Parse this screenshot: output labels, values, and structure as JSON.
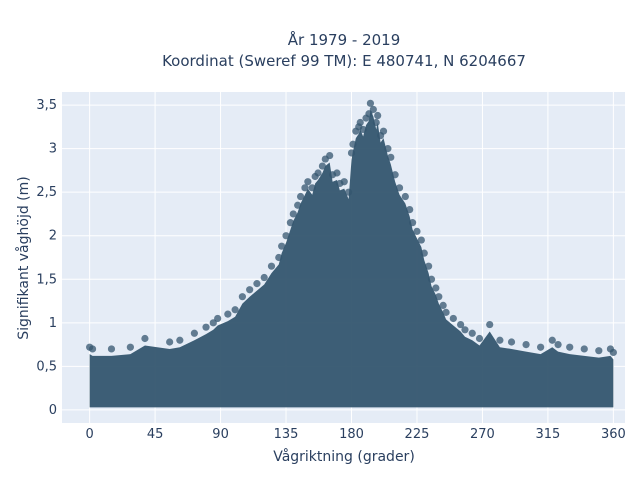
{
  "chart_data": {
    "type": "scatter",
    "title": "År 1979 - 2019",
    "subtitle": "Koordinat (Sweref 99 TM): E 480741, N 6204667",
    "xlabel": "Vågriktning (grader)",
    "ylabel": "Signifikant våghöjd (m)",
    "xlim": [
      -19,
      368
    ],
    "ylim": [
      -0.15,
      3.65
    ],
    "x_ticks": [
      0,
      45,
      90,
      135,
      180,
      225,
      270,
      315,
      360
    ],
    "x_tick_labels": [
      "0",
      "45",
      "90",
      "135",
      "180",
      "225",
      "270",
      "315",
      "360"
    ],
    "y_ticks": [
      0,
      0.5,
      1,
      1.5,
      2,
      2.5,
      3,
      3.5
    ],
    "y_tick_labels": [
      "0",
      "0,5",
      "1",
      "1,5",
      "2",
      "2,5",
      "3",
      "3,5"
    ],
    "grid": true,
    "legend": "none",
    "marker_color": "#34566f",
    "marker_opacity": 0.75,
    "series": [
      {
        "name": "",
        "points": [
          [
            0,
            0.72
          ],
          [
            2,
            0.7
          ],
          [
            15,
            0.7
          ],
          [
            28,
            0.72
          ],
          [
            38,
            0.82
          ],
          [
            55,
            0.78
          ],
          [
            62,
            0.8
          ],
          [
            72,
            0.88
          ],
          [
            80,
            0.95
          ],
          [
            85,
            1.0
          ],
          [
            88,
            1.05
          ],
          [
            95,
            1.1
          ],
          [
            100,
            1.15
          ],
          [
            105,
            1.3
          ],
          [
            110,
            1.38
          ],
          [
            115,
            1.45
          ],
          [
            120,
            1.52
          ],
          [
            125,
            1.65
          ],
          [
            130,
            1.75
          ],
          [
            132,
            1.88
          ],
          [
            135,
            2.0
          ],
          [
            138,
            2.15
          ],
          [
            140,
            2.25
          ],
          [
            143,
            2.35
          ],
          [
            145,
            2.45
          ],
          [
            148,
            2.55
          ],
          [
            150,
            2.62
          ],
          [
            153,
            2.55
          ],
          [
            155,
            2.68
          ],
          [
            157,
            2.72
          ],
          [
            160,
            2.8
          ],
          [
            162,
            2.88
          ],
          [
            165,
            2.92
          ],
          [
            167,
            2.7
          ],
          [
            170,
            2.72
          ],
          [
            172,
            2.6
          ],
          [
            175,
            2.62
          ],
          [
            178,
            2.5
          ],
          [
            180,
            2.95
          ],
          [
            181,
            3.05
          ],
          [
            183,
            3.2
          ],
          [
            185,
            3.25
          ],
          [
            186,
            3.3
          ],
          [
            188,
            3.22
          ],
          [
            190,
            3.35
          ],
          [
            192,
            3.4
          ],
          [
            193,
            3.52
          ],
          [
            195,
            3.45
          ],
          [
            197,
            3.3
          ],
          [
            198,
            3.38
          ],
          [
            200,
            3.15
          ],
          [
            202,
            3.2
          ],
          [
            205,
            3.0
          ],
          [
            207,
            2.9
          ],
          [
            210,
            2.7
          ],
          [
            213,
            2.55
          ],
          [
            217,
            2.45
          ],
          [
            220,
            2.3
          ],
          [
            222,
            2.15
          ],
          [
            225,
            2.05
          ],
          [
            228,
            1.95
          ],
          [
            230,
            1.8
          ],
          [
            233,
            1.65
          ],
          [
            235,
            1.5
          ],
          [
            238,
            1.4
          ],
          [
            240,
            1.3
          ],
          [
            243,
            1.2
          ],
          [
            245,
            1.12
          ],
          [
            250,
            1.05
          ],
          [
            255,
            0.98
          ],
          [
            258,
            0.92
          ],
          [
            263,
            0.88
          ],
          [
            268,
            0.82
          ],
          [
            275,
            0.98
          ],
          [
            282,
            0.8
          ],
          [
            290,
            0.78
          ],
          [
            300,
            0.75
          ],
          [
            310,
            0.72
          ],
          [
            318,
            0.8
          ],
          [
            322,
            0.75
          ],
          [
            330,
            0.72
          ],
          [
            340,
            0.7
          ],
          [
            350,
            0.68
          ],
          [
            358,
            0.7
          ],
          [
            360,
            0.66
          ]
        ]
      }
    ]
  }
}
